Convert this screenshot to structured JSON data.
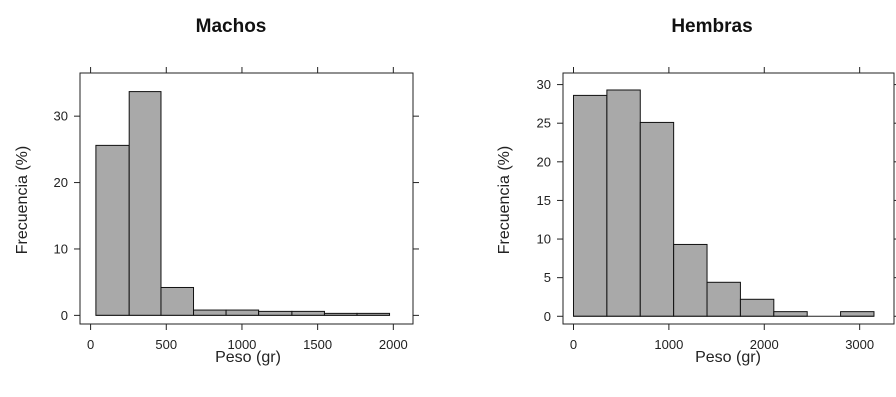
{
  "chart_data": [
    {
      "type": "bar",
      "title": "Machos",
      "xlabel": "Peso (gr)",
      "ylabel": "Frecuencia (%)",
      "xlim": [
        -70,
        2130
      ],
      "ylim": [
        -1.3,
        36.5
      ],
      "xticks": [
        0,
        500,
        1000,
        1500,
        2000
      ],
      "xtick_labels": [
        "0",
        "500",
        "1000",
        "1500",
        "2000"
      ],
      "yticks": [
        0,
        10,
        20,
        30
      ],
      "ytick_labels": [
        "0",
        "10",
        "20",
        "30"
      ],
      "bins": [
        {
          "x0": 35,
          "x1": 255,
          "value": 25.6
        },
        {
          "x0": 255,
          "x1": 465,
          "value": 33.7
        },
        {
          "x0": 465,
          "x1": 680,
          "value": 4.2
        },
        {
          "x0": 680,
          "x1": 895,
          "value": 0.8
        },
        {
          "x0": 895,
          "x1": 1110,
          "value": 0.8
        },
        {
          "x0": 1110,
          "x1": 1330,
          "value": 0.6
        },
        {
          "x0": 1330,
          "x1": 1545,
          "value": 0.6
        },
        {
          "x0": 1545,
          "x1": 1760,
          "value": 0.3
        },
        {
          "x0": 1760,
          "x1": 1975,
          "value": 0.3
        }
      ],
      "grid": false,
      "frame": "box"
    },
    {
      "type": "bar",
      "title": "Hembras",
      "xlabel": "Peso (gr)",
      "ylabel": "Frecuencia (%)",
      "xlim": [
        -110,
        3360
      ],
      "ylim": [
        -1.0,
        31.5
      ],
      "xticks": [
        0,
        1000,
        2000,
        3000
      ],
      "xtick_labels": [
        "0",
        "1000",
        "2000",
        "3000"
      ],
      "yticks": [
        0,
        5,
        10,
        15,
        20,
        25,
        30
      ],
      "ytick_labels": [
        "0",
        "5",
        "10",
        "15",
        "20",
        "25",
        "30"
      ],
      "bins": [
        {
          "x0": 0,
          "x1": 350,
          "value": 28.6
        },
        {
          "x0": 350,
          "x1": 700,
          "value": 29.3
        },
        {
          "x0": 700,
          "x1": 1050,
          "value": 25.1
        },
        {
          "x0": 1050,
          "x1": 1400,
          "value": 9.3
        },
        {
          "x0": 1400,
          "x1": 1750,
          "value": 4.4
        },
        {
          "x0": 1750,
          "x1": 2100,
          "value": 2.2
        },
        {
          "x0": 2100,
          "x1": 2450,
          "value": 0.6
        },
        {
          "x0": 2450,
          "x1": 2800,
          "value": 0.0
        },
        {
          "x0": 2800,
          "x1": 3150,
          "value": 0.6
        }
      ],
      "grid": false,
      "frame": "box"
    }
  ]
}
